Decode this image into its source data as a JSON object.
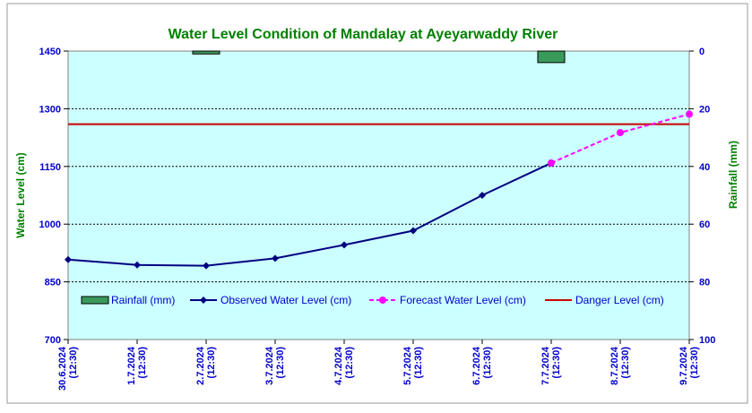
{
  "chart_data": {
    "type": "line",
    "title": "Water Level Condition of Mandalay at Ayeyarwaddy River",
    "ylabel": "Water Level (cm)",
    "y2label": "Rainfall (mm)",
    "categories": [
      "30.6.2024",
      "1.7.2024",
      "2.7.2024",
      "3.7.2024",
      "4.7.2024",
      "5.7.2024",
      "6.7.2024",
      "7.7.2024",
      "8.7.2024",
      "9.7.2024"
    ],
    "category_time": "(12:30)",
    "ylim": [
      700,
      1450
    ],
    "yticks": [
      700,
      850,
      1000,
      1150,
      1300,
      1450
    ],
    "y2lim": [
      0,
      100
    ],
    "y2ticks": [
      0,
      20,
      40,
      60,
      80,
      100
    ],
    "y2_inverted": true,
    "grid": true,
    "legend_position": "bottom-left inside plot",
    "series": [
      {
        "name": "Rainfall (mm)",
        "type": "bar",
        "axis": "right",
        "color": "#3a9a5b",
        "values": [
          0,
          0,
          1,
          0,
          0,
          0,
          0,
          4,
          0,
          0
        ]
      },
      {
        "name": "Observed Water Level (cm)",
        "type": "line",
        "axis": "left",
        "color": "#000080",
        "marker": "diamond",
        "values": [
          908,
          894,
          892,
          911,
          946,
          983,
          1075,
          1159,
          null,
          null
        ]
      },
      {
        "name": "Forecast Water Level (cm)",
        "type": "line",
        "axis": "left",
        "color": "#ff00ff",
        "dashed": true,
        "marker": "circle",
        "values": [
          null,
          null,
          null,
          null,
          null,
          null,
          null,
          1159,
          1238,
          1286
        ]
      },
      {
        "name": "Danger Level (cm)",
        "type": "line",
        "axis": "left",
        "color": "#cc0000",
        "values": [
          1260,
          1260,
          1260,
          1260,
          1260,
          1260,
          1260,
          1260,
          1260,
          1260
        ]
      }
    ]
  },
  "colors": {
    "plot_background": "#ccffff",
    "title": "#008000",
    "axis_text": "#0000cc"
  }
}
